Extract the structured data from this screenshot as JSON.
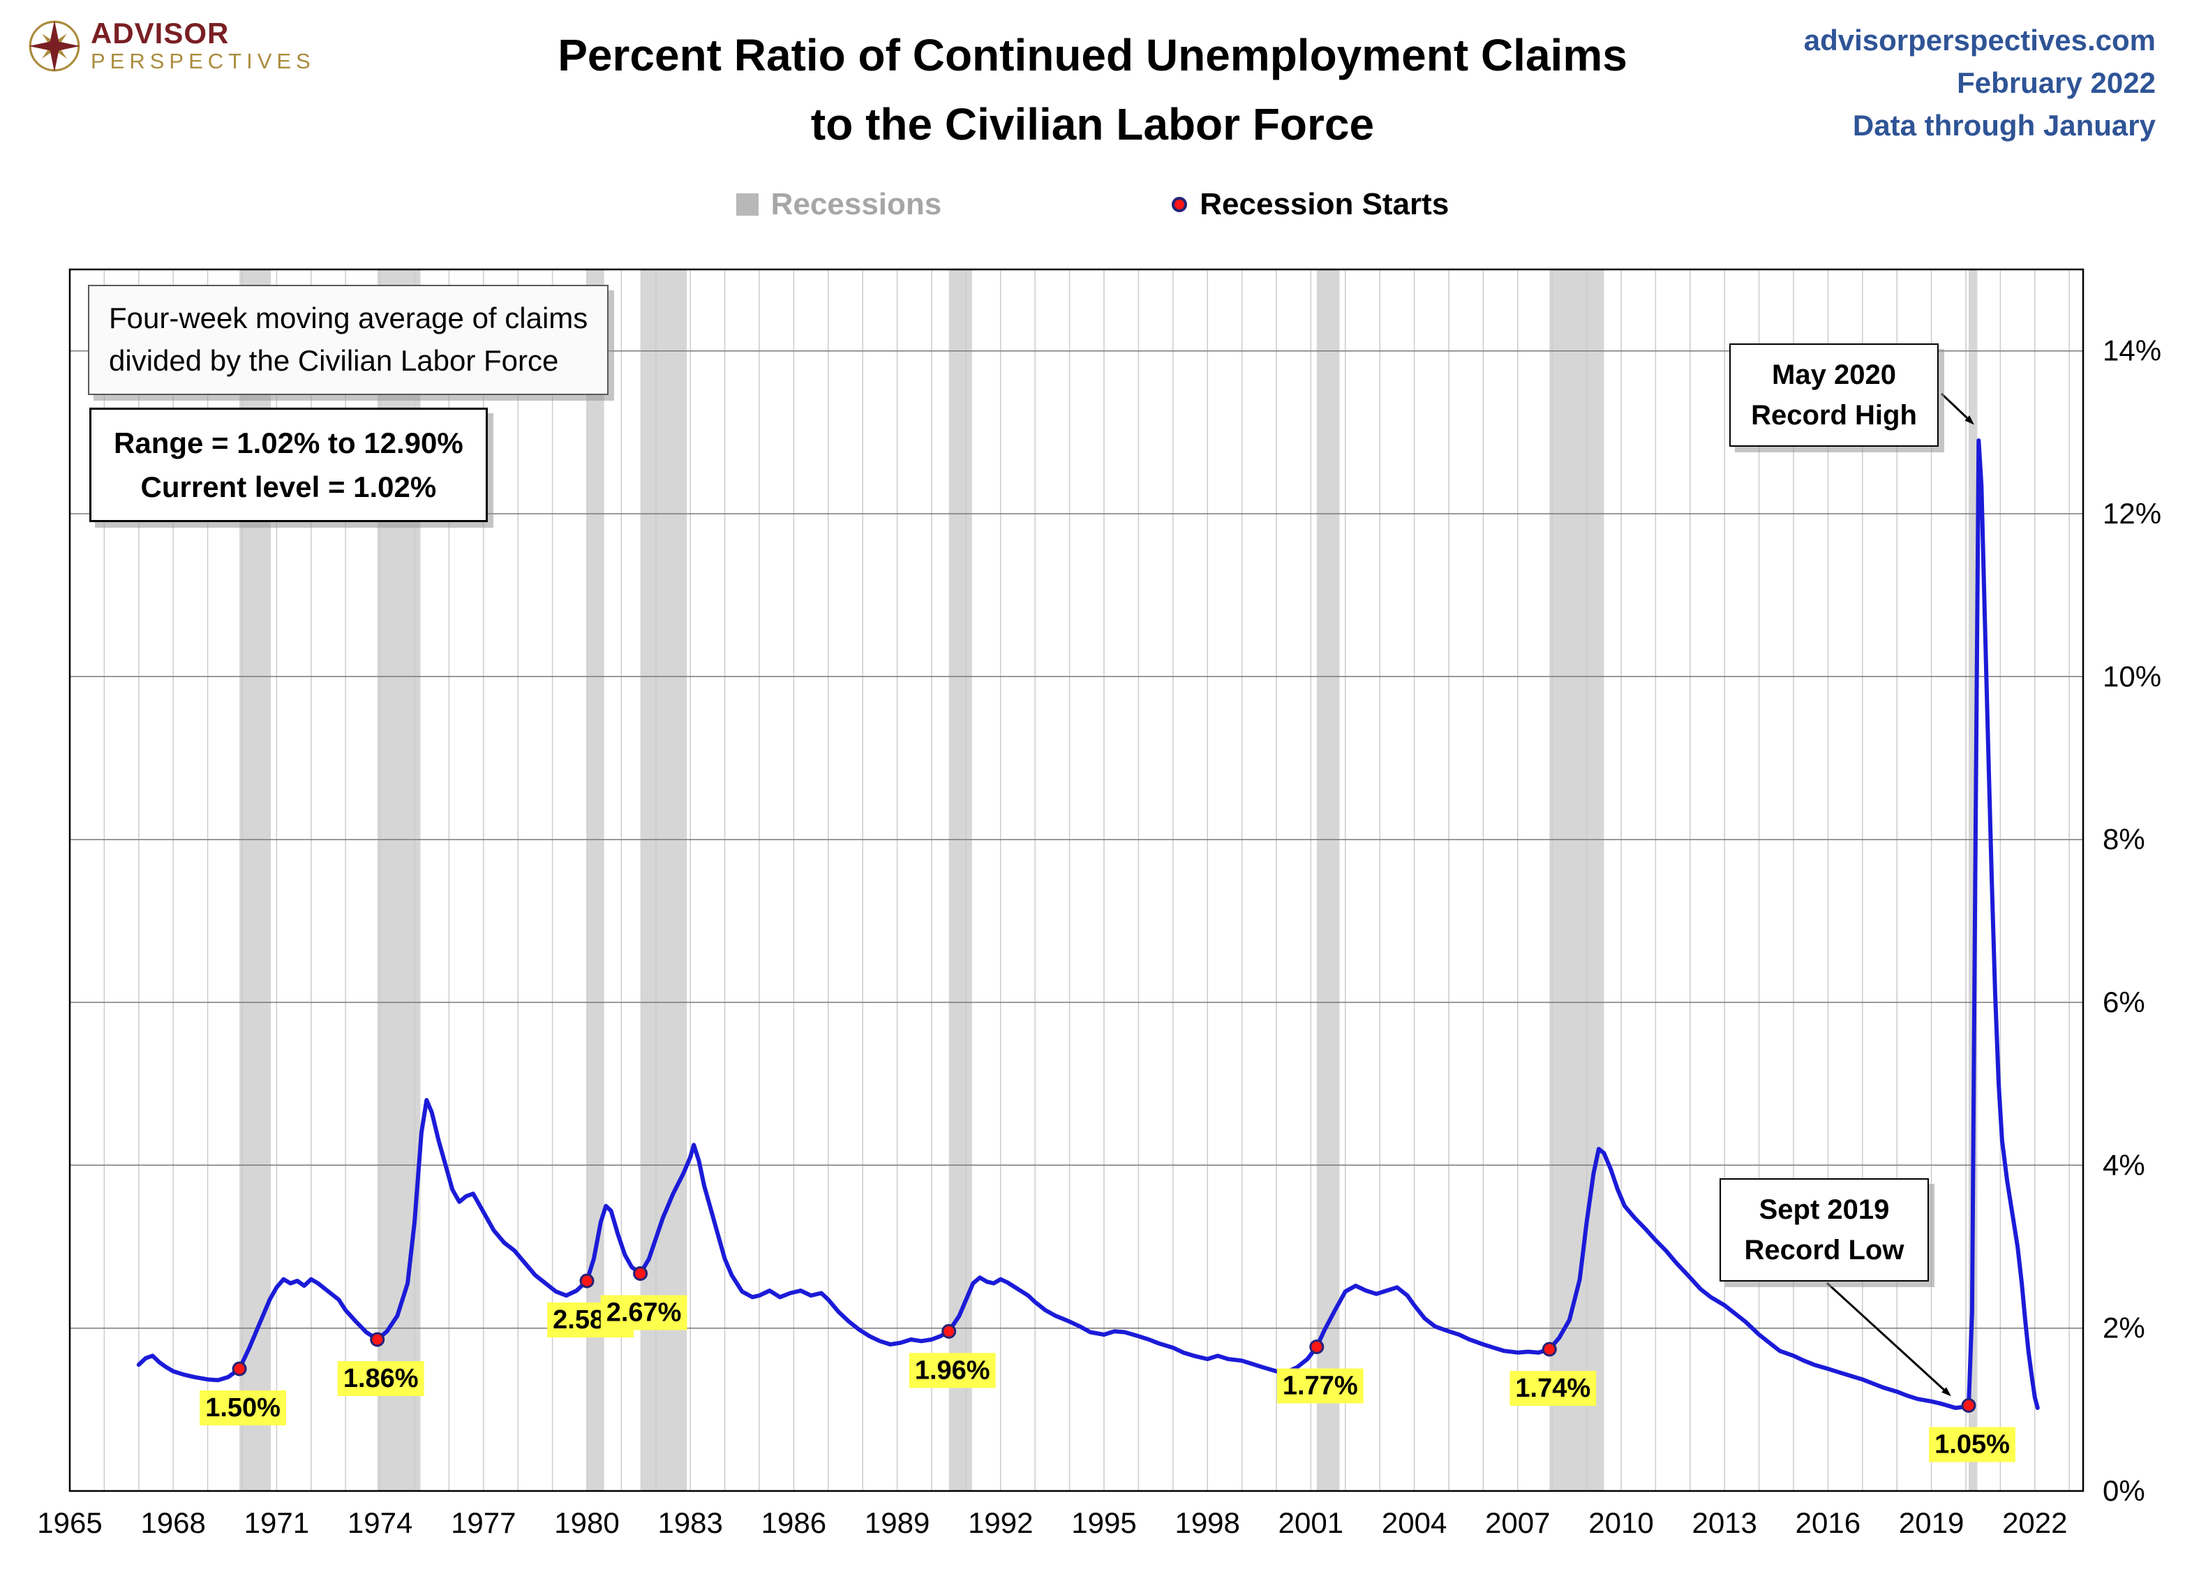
{
  "header": {
    "logo_line1": "ADVISOR",
    "logo_line2": "PERSPECTIVES",
    "title_line1": "Percent Ratio of Continued Unemployment Claims",
    "title_line2": "to the Civilian Labor Force",
    "website": "advisorperspectives.com",
    "date": "February 2022",
    "data_through": "Data through January"
  },
  "legend": {
    "recessions": "Recessions",
    "recession_starts": "Recession Starts"
  },
  "annotations": {
    "note_line1": "Four-week moving average of claims",
    "note_line2": "divided by the Civilian Labor Force",
    "range_line1": "Range = 1.02% to 12.90%",
    "range_line2": "Current level = 1.02%",
    "high_line1": "May 2020",
    "high_line2": "Record High",
    "low_line1": "Sept 2019",
    "low_line2": "Record Low"
  },
  "chart_data": {
    "type": "line",
    "title": "Percent Ratio of Continued Unemployment Claims to the Civilian Labor Force",
    "xlabel": "",
    "ylabel": "",
    "x_domain": [
      1965,
      2023.4
    ],
    "x_ticks": [
      1965,
      1968,
      1971,
      1974,
      1977,
      1980,
      1983,
      1986,
      1989,
      1992,
      1995,
      1998,
      2001,
      2004,
      2007,
      2010,
      2013,
      2016,
      2019,
      2022
    ],
    "y_max": 15,
    "y_ticks": [
      0,
      2,
      4,
      6,
      8,
      10,
      12,
      14
    ],
    "y_tick_suffix": "%",
    "grid": true,
    "legend_position": "top",
    "stats": {
      "range_low": "1.02%",
      "range_high": "12.90%",
      "current_level": "1.02%"
    },
    "record_high": {
      "year": 2020.37,
      "value": 12.9,
      "label": "May 2020 Record High"
    },
    "record_low": {
      "year": 2019.7,
      "value": 1.02,
      "label": "Sept 2019 Record Low"
    },
    "recessions": [
      [
        1969.92,
        1970.83
      ],
      [
        1973.92,
        1975.17
      ],
      [
        1980.0,
        1980.5
      ],
      [
        1981.55,
        1982.9
      ],
      [
        1990.5,
        1991.17
      ],
      [
        2001.17,
        2001.83
      ],
      [
        2007.92,
        2009.5
      ],
      [
        2020.08,
        2020.33
      ]
    ],
    "recession_starts": [
      {
        "year": 1969.92,
        "value": 1.5,
        "label": "1.50%"
      },
      {
        "year": 1973.92,
        "value": 1.86,
        "label": "1.86%"
      },
      {
        "year": 1980.0,
        "value": 2.58,
        "label": "2.58%"
      },
      {
        "year": 1981.55,
        "value": 2.67,
        "label": "2.67%"
      },
      {
        "year": 1990.5,
        "value": 1.96,
        "label": "1.96%"
      },
      {
        "year": 2001.17,
        "value": 1.77,
        "label": "1.77%"
      },
      {
        "year": 2007.92,
        "value": 1.74,
        "label": "1.74%"
      },
      {
        "year": 2020.08,
        "value": 1.05,
        "label": "1.05%"
      }
    ],
    "colors": {
      "line": "#1b1bd8",
      "band": "#d6d6d6",
      "vgrid": "#cccccc",
      "hgrid": "#7a7a7a",
      "border": "#000000",
      "dot_fill": "#ff1616",
      "dot_stroke": "#232378",
      "label_bg": "#ffff4d",
      "axis_text": "#000000"
    },
    "series": [
      {
        "name": "Four-week moving average of continued claims divided by the civilian labor force",
        "points": [
          [
            1967.0,
            1.55
          ],
          [
            1967.2,
            1.63
          ],
          [
            1967.4,
            1.66
          ],
          [
            1967.6,
            1.58
          ],
          [
            1967.8,
            1.52
          ],
          [
            1968.0,
            1.47
          ],
          [
            1968.3,
            1.43
          ],
          [
            1968.6,
            1.4
          ],
          [
            1969.0,
            1.37
          ],
          [
            1969.3,
            1.36
          ],
          [
            1969.6,
            1.4
          ],
          [
            1969.92,
            1.5
          ],
          [
            1970.2,
            1.75
          ],
          [
            1970.5,
            2.05
          ],
          [
            1970.8,
            2.35
          ],
          [
            1971.0,
            2.5
          ],
          [
            1971.2,
            2.6
          ],
          [
            1971.4,
            2.55
          ],
          [
            1971.6,
            2.58
          ],
          [
            1971.8,
            2.52
          ],
          [
            1972.0,
            2.6
          ],
          [
            1972.2,
            2.55
          ],
          [
            1972.5,
            2.45
          ],
          [
            1972.8,
            2.35
          ],
          [
            1973.0,
            2.22
          ],
          [
            1973.3,
            2.08
          ],
          [
            1973.6,
            1.95
          ],
          [
            1973.92,
            1.86
          ],
          [
            1974.2,
            1.96
          ],
          [
            1974.5,
            2.15
          ],
          [
            1974.8,
            2.55
          ],
          [
            1975.0,
            3.3
          ],
          [
            1975.2,
            4.4
          ],
          [
            1975.35,
            4.8
          ],
          [
            1975.5,
            4.65
          ],
          [
            1975.7,
            4.3
          ],
          [
            1975.9,
            4.0
          ],
          [
            1976.1,
            3.7
          ],
          [
            1976.3,
            3.55
          ],
          [
            1976.5,
            3.62
          ],
          [
            1976.7,
            3.65
          ],
          [
            1976.9,
            3.5
          ],
          [
            1977.1,
            3.35
          ],
          [
            1977.3,
            3.2
          ],
          [
            1977.6,
            3.05
          ],
          [
            1977.9,
            2.95
          ],
          [
            1978.2,
            2.8
          ],
          [
            1978.5,
            2.65
          ],
          [
            1978.8,
            2.55
          ],
          [
            1979.1,
            2.45
          ],
          [
            1979.4,
            2.4
          ],
          [
            1979.7,
            2.46
          ],
          [
            1980.0,
            2.58
          ],
          [
            1980.2,
            2.85
          ],
          [
            1980.4,
            3.3
          ],
          [
            1980.55,
            3.5
          ],
          [
            1980.7,
            3.44
          ],
          [
            1980.9,
            3.15
          ],
          [
            1981.1,
            2.9
          ],
          [
            1981.3,
            2.75
          ],
          [
            1981.55,
            2.67
          ],
          [
            1981.8,
            2.85
          ],
          [
            1982.0,
            3.1
          ],
          [
            1982.2,
            3.35
          ],
          [
            1982.5,
            3.65
          ],
          [
            1982.8,
            3.9
          ],
          [
            1983.0,
            4.1
          ],
          [
            1983.1,
            4.25
          ],
          [
            1983.25,
            4.05
          ],
          [
            1983.4,
            3.75
          ],
          [
            1983.6,
            3.45
          ],
          [
            1983.8,
            3.15
          ],
          [
            1984.0,
            2.85
          ],
          [
            1984.2,
            2.65
          ],
          [
            1984.5,
            2.45
          ],
          [
            1984.8,
            2.38
          ],
          [
            1985.0,
            2.4
          ],
          [
            1985.3,
            2.46
          ],
          [
            1985.6,
            2.38
          ],
          [
            1985.9,
            2.43
          ],
          [
            1986.2,
            2.46
          ],
          [
            1986.5,
            2.4
          ],
          [
            1986.8,
            2.43
          ],
          [
            1987.0,
            2.35
          ],
          [
            1987.3,
            2.2
          ],
          [
            1987.6,
            2.08
          ],
          [
            1987.9,
            1.98
          ],
          [
            1988.2,
            1.9
          ],
          [
            1988.5,
            1.84
          ],
          [
            1988.8,
            1.8
          ],
          [
            1989.1,
            1.82
          ],
          [
            1989.4,
            1.86
          ],
          [
            1989.7,
            1.84
          ],
          [
            1990.0,
            1.86
          ],
          [
            1990.25,
            1.9
          ],
          [
            1990.5,
            1.96
          ],
          [
            1990.8,
            2.15
          ],
          [
            1991.0,
            2.35
          ],
          [
            1991.2,
            2.55
          ],
          [
            1991.4,
            2.62
          ],
          [
            1991.6,
            2.57
          ],
          [
            1991.8,
            2.55
          ],
          [
            1992.0,
            2.6
          ],
          [
            1992.2,
            2.56
          ],
          [
            1992.5,
            2.48
          ],
          [
            1992.8,
            2.4
          ],
          [
            1993.0,
            2.32
          ],
          [
            1993.3,
            2.22
          ],
          [
            1993.6,
            2.15
          ],
          [
            1994.0,
            2.08
          ],
          [
            1994.3,
            2.02
          ],
          [
            1994.6,
            1.95
          ],
          [
            1995.0,
            1.92
          ],
          [
            1995.3,
            1.96
          ],
          [
            1995.6,
            1.95
          ],
          [
            1996.0,
            1.9
          ],
          [
            1996.3,
            1.86
          ],
          [
            1996.6,
            1.81
          ],
          [
            1997.0,
            1.76
          ],
          [
            1997.3,
            1.7
          ],
          [
            1997.6,
            1.66
          ],
          [
            1998.0,
            1.62
          ],
          [
            1998.3,
            1.66
          ],
          [
            1998.6,
            1.62
          ],
          [
            1999.0,
            1.6
          ],
          [
            1999.3,
            1.56
          ],
          [
            1999.6,
            1.52
          ],
          [
            2000.0,
            1.47
          ],
          [
            2000.3,
            1.46
          ],
          [
            2000.6,
            1.52
          ],
          [
            2000.9,
            1.62
          ],
          [
            2001.17,
            1.77
          ],
          [
            2001.4,
            1.98
          ],
          [
            2001.7,
            2.22
          ],
          [
            2002.0,
            2.45
          ],
          [
            2002.3,
            2.52
          ],
          [
            2002.6,
            2.46
          ],
          [
            2002.9,
            2.42
          ],
          [
            2003.2,
            2.46
          ],
          [
            2003.5,
            2.5
          ],
          [
            2003.8,
            2.4
          ],
          [
            2004.0,
            2.28
          ],
          [
            2004.3,
            2.12
          ],
          [
            2004.6,
            2.02
          ],
          [
            2005.0,
            1.96
          ],
          [
            2005.3,
            1.92
          ],
          [
            2005.6,
            1.86
          ],
          [
            2006.0,
            1.8
          ],
          [
            2006.3,
            1.76
          ],
          [
            2006.6,
            1.72
          ],
          [
            2007.0,
            1.7
          ],
          [
            2007.3,
            1.71
          ],
          [
            2007.6,
            1.7
          ],
          [
            2007.92,
            1.74
          ],
          [
            2008.2,
            1.88
          ],
          [
            2008.5,
            2.1
          ],
          [
            2008.8,
            2.6
          ],
          [
            2009.0,
            3.3
          ],
          [
            2009.2,
            3.9
          ],
          [
            2009.35,
            4.2
          ],
          [
            2009.5,
            4.15
          ],
          [
            2009.7,
            3.95
          ],
          [
            2009.9,
            3.7
          ],
          [
            2010.1,
            3.5
          ],
          [
            2010.4,
            3.35
          ],
          [
            2010.7,
            3.22
          ],
          [
            2011.0,
            3.08
          ],
          [
            2011.3,
            2.95
          ],
          [
            2011.6,
            2.8
          ],
          [
            2012.0,
            2.62
          ],
          [
            2012.3,
            2.48
          ],
          [
            2012.6,
            2.38
          ],
          [
            2013.0,
            2.28
          ],
          [
            2013.3,
            2.18
          ],
          [
            2013.6,
            2.08
          ],
          [
            2014.0,
            1.92
          ],
          [
            2014.3,
            1.82
          ],
          [
            2014.6,
            1.72
          ],
          [
            2015.0,
            1.66
          ],
          [
            2015.3,
            1.6
          ],
          [
            2015.6,
            1.55
          ],
          [
            2016.0,
            1.5
          ],
          [
            2016.3,
            1.46
          ],
          [
            2016.6,
            1.42
          ],
          [
            2017.0,
            1.37
          ],
          [
            2017.3,
            1.32
          ],
          [
            2017.6,
            1.27
          ],
          [
            2018.0,
            1.22
          ],
          [
            2018.3,
            1.17
          ],
          [
            2018.6,
            1.13
          ],
          [
            2019.0,
            1.1
          ],
          [
            2019.3,
            1.07
          ],
          [
            2019.7,
            1.02
          ],
          [
            2019.9,
            1.03
          ],
          [
            2020.08,
            1.05
          ],
          [
            2020.18,
            2.2
          ],
          [
            2020.27,
            7.5
          ],
          [
            2020.37,
            12.9
          ],
          [
            2020.45,
            12.35
          ],
          [
            2020.55,
            10.7
          ],
          [
            2020.65,
            9.1
          ],
          [
            2020.75,
            7.5
          ],
          [
            2020.85,
            6.1
          ],
          [
            2020.95,
            5.0
          ],
          [
            2021.05,
            4.3
          ],
          [
            2021.2,
            3.8
          ],
          [
            2021.35,
            3.4
          ],
          [
            2021.5,
            3.0
          ],
          [
            2021.62,
            2.55
          ],
          [
            2021.72,
            2.1
          ],
          [
            2021.82,
            1.7
          ],
          [
            2021.92,
            1.38
          ],
          [
            2022.0,
            1.15
          ],
          [
            2022.08,
            1.02
          ]
        ]
      }
    ]
  }
}
